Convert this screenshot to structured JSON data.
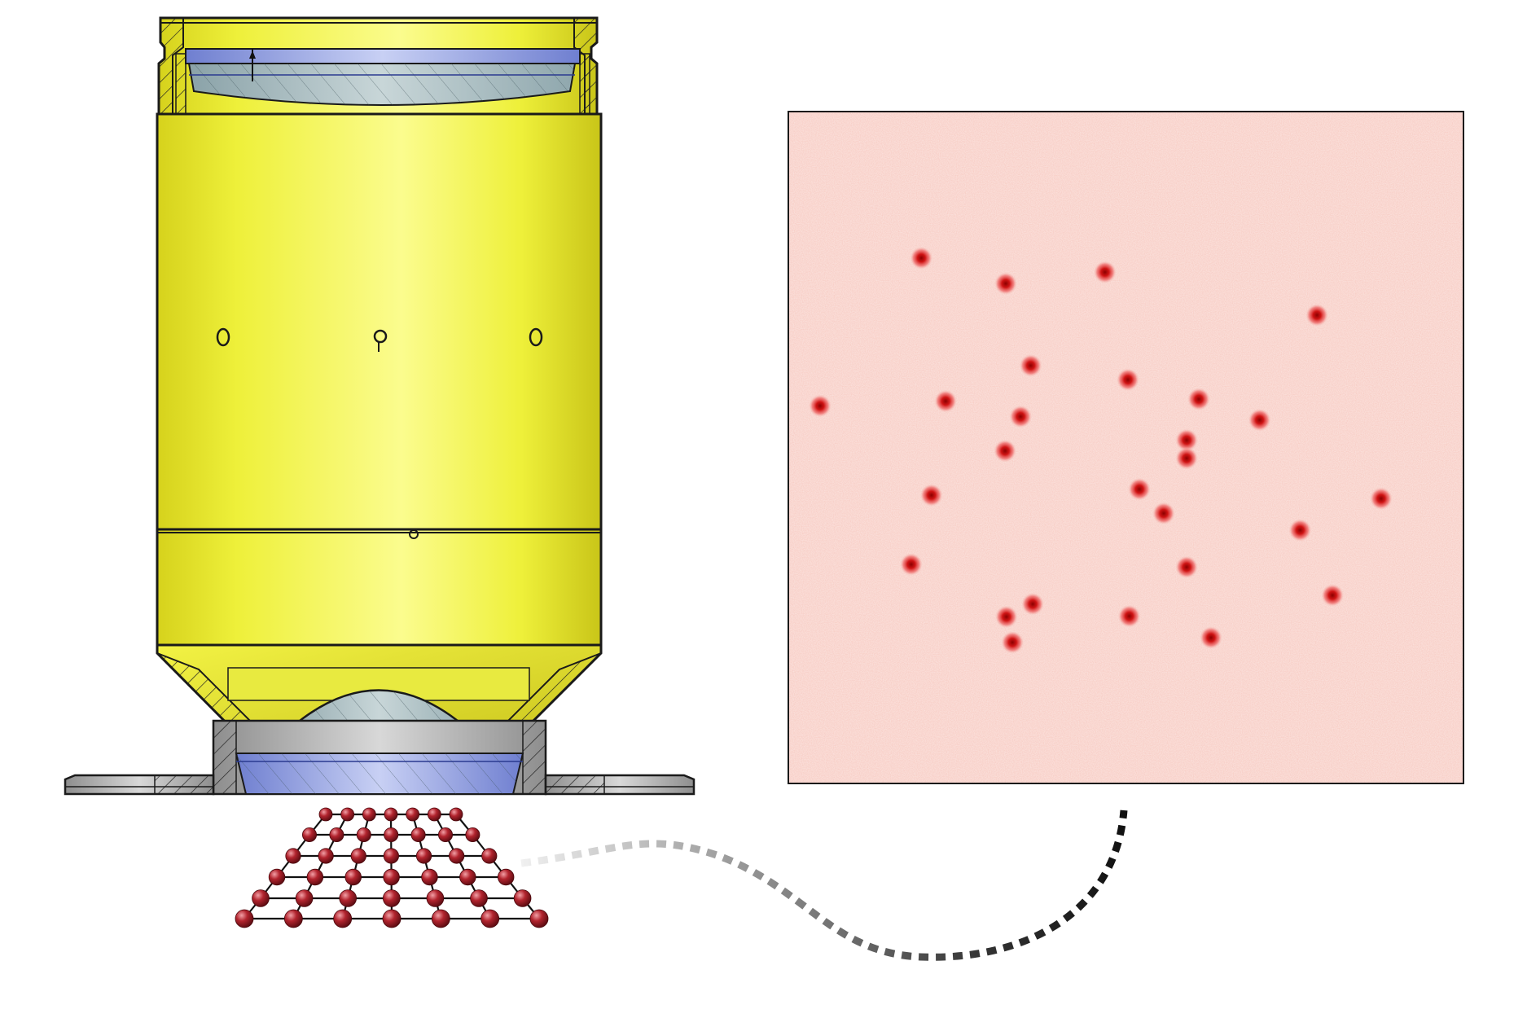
{
  "colors": {
    "housing_yellow": "#eef03a",
    "housing_highlight": "#fbfc9a",
    "housing_shadow": "#c9c518",
    "outline": "#1a1a1a",
    "lens_glass": "#a9bcc2",
    "lens_blue": "#8796d8",
    "metal_gray": "#b8b8b8",
    "image_background": "#f7c8bf",
    "spot_color": "#d21a1a",
    "atom_color": "#9c1c24",
    "lattice_line": "#111111"
  },
  "icons": {
    "objective": "microscope-objective-cross-section",
    "lattice": "atom-lattice-icon",
    "image": "fluorescence-image-panel",
    "connector": "dashed-gradient-connector"
  },
  "fluorescence_image": {
    "spots": [
      [
        0.197,
        0.218
      ],
      [
        0.322,
        0.256
      ],
      [
        0.469,
        0.239
      ],
      [
        0.783,
        0.303
      ],
      [
        0.047,
        0.438
      ],
      [
        0.233,
        0.431
      ],
      [
        0.359,
        0.378
      ],
      [
        0.344,
        0.454
      ],
      [
        0.321,
        0.505
      ],
      [
        0.503,
        0.399
      ],
      [
        0.608,
        0.428
      ],
      [
        0.698,
        0.459
      ],
      [
        0.59,
        0.489
      ],
      [
        0.59,
        0.516
      ],
      [
        0.52,
        0.562
      ],
      [
        0.212,
        0.571
      ],
      [
        0.556,
        0.598
      ],
      [
        0.758,
        0.623
      ],
      [
        0.878,
        0.576
      ],
      [
        0.182,
        0.674
      ],
      [
        0.59,
        0.678
      ],
      [
        0.806,
        0.72
      ],
      [
        0.362,
        0.733
      ],
      [
        0.323,
        0.752
      ],
      [
        0.505,
        0.751
      ],
      [
        0.626,
        0.783
      ],
      [
        0.332,
        0.79
      ]
    ]
  }
}
